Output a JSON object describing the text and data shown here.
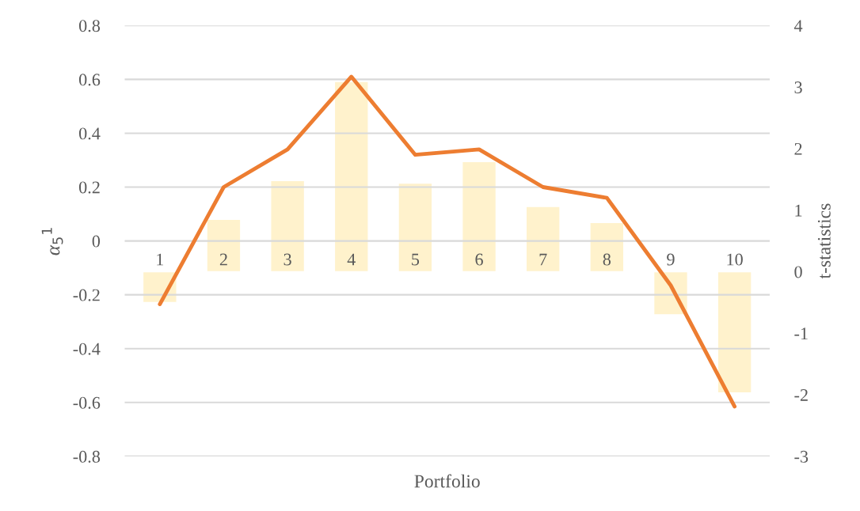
{
  "chart_data": {
    "type": "bar",
    "xlabel": "Portfolio",
    "ylabel": "α$_{5}$$^{1}$",
    "y2label": "t-statistics",
    "categories": [
      "1",
      "2",
      "3",
      "4",
      "5",
      "6",
      "7",
      "8",
      "9",
      "10"
    ],
    "series": [
      {
        "axis": "y2",
        "color": "#fff2cc",
        "values": [
          -0.5,
          0.85,
          1.48,
          3.09,
          1.44,
          1.79,
          1.06,
          0.8,
          -0.7,
          -1.97
        ]
      },
      {
        "type": "line",
        "axis": "y",
        "color": "#ed7d31",
        "values": [
          -0.235,
          0.2,
          0.34,
          0.61,
          0.32,
          0.34,
          0.2,
          0.16,
          -0.165,
          -0.615
        ]
      }
    ],
    "ylim": [
      -0.8,
      0.8
    ],
    "yticks": [
      -0.8,
      -0.6,
      -0.4,
      -0.2,
      0,
      0.2,
      0.4,
      0.6,
      0.8
    ],
    "y2lim": [
      -3,
      4
    ],
    "y2ticks": [
      -3,
      -2,
      -1,
      0,
      1,
      2,
      3,
      4
    ],
    "grid": "y"
  }
}
